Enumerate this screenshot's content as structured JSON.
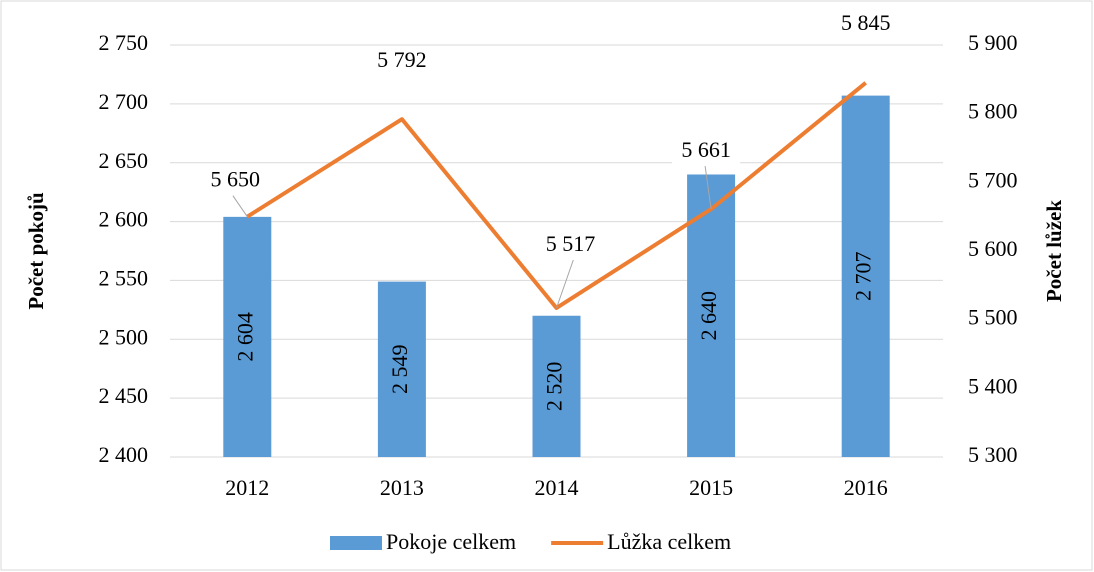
{
  "chart_data": {
    "type": "bar-line",
    "categories": [
      "2012",
      "2013",
      "2014",
      "2015",
      "2016"
    ],
    "series": [
      {
        "name": "Pokoje celkem",
        "type": "bar",
        "color": "#5b9bd5",
        "axis": "y",
        "values": [
          2604,
          2549,
          2520,
          2640,
          2707
        ],
        "value_labels": [
          "2 604",
          "2 549",
          "2 520",
          "2 640",
          "2 707"
        ]
      },
      {
        "name": "Lůžka celkem",
        "type": "line",
        "color": "#ed7d31",
        "axis": "y2",
        "values": [
          5650,
          5792,
          5517,
          5661,
          5845
        ],
        "value_labels": [
          "5 650",
          "5 792",
          "5 517",
          "5 661",
          "5 845"
        ]
      }
    ],
    "ylabel": "Počet pokojů",
    "y2label": "Počet lůžek",
    "ylim": [
      2400,
      2750
    ],
    "yticks": [
      {
        "value": 2400,
        "label": "2 400"
      },
      {
        "value": 2450,
        "label": "2 450"
      },
      {
        "value": 2500,
        "label": "2 500"
      },
      {
        "value": 2550,
        "label": "2 550"
      },
      {
        "value": 2600,
        "label": "2 600"
      },
      {
        "value": 2650,
        "label": "2 650"
      },
      {
        "value": 2700,
        "label": "2 700"
      },
      {
        "value": 2750,
        "label": "2 750"
      }
    ],
    "y2lim": [
      5300,
      5900
    ],
    "y2ticks": [
      {
        "value": 5300,
        "label": "5 300"
      },
      {
        "value": 5400,
        "label": "5 400"
      },
      {
        "value": 5500,
        "label": "5 500"
      },
      {
        "value": 5600,
        "label": "5 600"
      },
      {
        "value": 5700,
        "label": "5 700"
      },
      {
        "value": 5800,
        "label": "5 800"
      },
      {
        "value": 5900,
        "label": "5 900"
      }
    ],
    "grid": true,
    "legend": "bottom"
  }
}
